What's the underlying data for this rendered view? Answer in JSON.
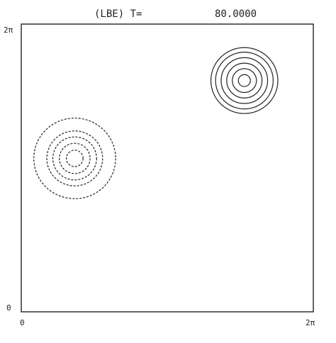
{
  "header": {
    "run_label": "(LBE) T=",
    "time_value": "80.0000"
  },
  "axes": {
    "x_min_label": "0",
    "x_max_label": "2π",
    "y_min_label": "0",
    "y_max_label": "2π",
    "x_range": [
      0,
      6.2832
    ],
    "y_range": [
      0,
      6.2832
    ]
  },
  "colors": {
    "ink": "#222222",
    "background": "#ffffff"
  },
  "contours": {
    "positive_vortex": {
      "line_style": "solid",
      "center": [
        4.8,
        5.05
      ],
      "radii": [
        0.13,
        0.26,
        0.38,
        0.5,
        0.62,
        0.72
      ]
    },
    "negative_vortex": {
      "line_style": "dashed",
      "center": [
        1.15,
        3.35
      ],
      "radii": [
        0.18,
        0.33,
        0.47,
        0.6,
        0.88
      ]
    }
  }
}
